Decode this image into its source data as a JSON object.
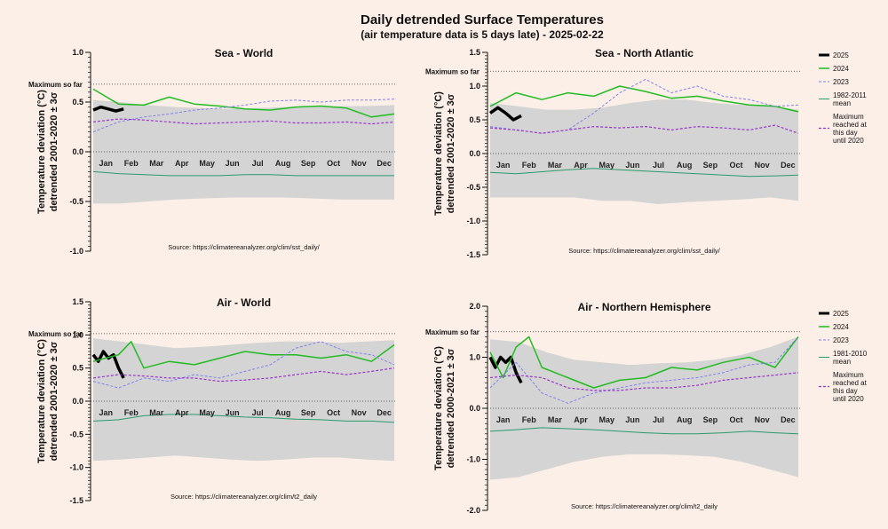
{
  "figure": {
    "title": "Daily detrended Surface Temperatures",
    "subtitle": "(air temperature data is 5 days late) - 2025-02-22",
    "months": [
      "Jan",
      "Feb",
      "Mar",
      "Apr",
      "May",
      "Jun",
      "Jul",
      "Aug",
      "Sep",
      "Oct",
      "Nov",
      "Dec"
    ],
    "max_label": "Maximum so far",
    "colors": {
      "y2025": "#000000",
      "y2024": "#22bb22",
      "y2023": "#8080ee",
      "mean": "#2a9a6a",
      "maxline": "#9933cc",
      "band": "#d4d4d4",
      "background": "#fcefe7"
    }
  },
  "chart_data": [
    {
      "type": "line",
      "title": "Sea  -  World",
      "ylabel": "Temperature deviation (°C)",
      "ylabel2": "detrended 2001-2020 ± 3σ",
      "source": "Source: https://climatereanalyzer.org/clim/sst_daily/",
      "ylim": [
        -1.0,
        1.0
      ],
      "yticks": [
        "1.0",
        "0.5",
        "0.0",
        "-0.5",
        "-1.0"
      ],
      "max_so_far": 0.68,
      "band_upper": [
        0.52,
        0.5,
        0.47,
        0.45,
        0.44,
        0.43,
        0.44,
        0.45,
        0.46,
        0.46,
        0.46,
        0.47
      ],
      "band_lower": [
        -0.52,
        -0.52,
        -0.5,
        -0.48,
        -0.47,
        -0.46,
        -0.46,
        -0.46,
        -0.47,
        -0.48,
        -0.48,
        -0.48
      ],
      "series": [
        {
          "name": "2025",
          "x": [
            0,
            0.3,
            0.6,
            0.9,
            1.2
          ],
          "values": [
            0.42,
            0.45,
            0.43,
            0.41,
            0.43
          ]
        },
        {
          "name": "2024",
          "x": [
            0,
            1,
            2,
            3,
            4,
            5,
            6,
            7,
            8,
            9,
            10,
            11,
            11.9
          ],
          "values": [
            0.63,
            0.48,
            0.47,
            0.55,
            0.48,
            0.46,
            0.43,
            0.42,
            0.45,
            0.46,
            0.44,
            0.35,
            0.38
          ]
        },
        {
          "name": "2023",
          "x": [
            0,
            1,
            2,
            3,
            4,
            5,
            6,
            7,
            8,
            9,
            10,
            11,
            11.9
          ],
          "values": [
            0.2,
            0.3,
            0.35,
            0.38,
            0.42,
            0.44,
            0.47,
            0.51,
            0.52,
            0.5,
            0.52,
            0.52,
            0.53
          ]
        },
        {
          "name": "1982-2011 mean",
          "x": [
            0,
            1,
            2,
            3,
            4,
            5,
            6,
            7,
            8,
            9,
            10,
            11,
            11.9
          ],
          "values": [
            -0.2,
            -0.22,
            -0.23,
            -0.24,
            -0.24,
            -0.24,
            -0.23,
            -0.23,
            -0.24,
            -0.24,
            -0.24,
            -0.24,
            -0.24
          ]
        },
        {
          "name": "Maximum",
          "x": [
            0,
            1,
            2,
            3,
            4,
            5,
            6,
            7,
            8,
            9,
            10,
            11,
            11.9
          ],
          "values": [
            0.3,
            0.33,
            0.32,
            0.3,
            0.28,
            0.29,
            0.3,
            0.31,
            0.29,
            0.29,
            0.3,
            0.28,
            0.3
          ]
        }
      ]
    },
    {
      "type": "line",
      "title": "Sea  -  North  Atlantic",
      "ylabel": "Temperature deviation (°C)",
      "ylabel2": "detrended 2001-2020 ± 3σ",
      "source": "Source: https://climatereanalyzer.org/clim/sst_daily/",
      "ylim": [
        -1.5,
        1.5
      ],
      "yticks": [
        "1.5",
        "1.0",
        "0.5",
        "0.0",
        "-0.5",
        "-1.0",
        "-1.5"
      ],
      "max_so_far": 1.22,
      "band_upper": [
        0.75,
        0.7,
        0.65,
        0.65,
        0.68,
        0.75,
        0.8,
        0.8,
        0.75,
        0.72,
        0.7,
        0.65
      ],
      "band_lower": [
        -0.65,
        -0.65,
        -0.65,
        -0.65,
        -0.7,
        -0.7,
        -0.75,
        -0.72,
        -0.7,
        -0.68,
        -0.65,
        -0.7
      ],
      "series": [
        {
          "name": "2025",
          "x": [
            0,
            0.3,
            0.6,
            0.9,
            1.2
          ],
          "values": [
            0.6,
            0.68,
            0.6,
            0.5,
            0.56
          ]
        },
        {
          "name": "2024",
          "x": [
            0,
            1,
            2,
            3,
            4,
            5,
            6,
            7,
            8,
            9,
            10,
            11,
            11.9
          ],
          "values": [
            0.7,
            0.9,
            0.8,
            0.9,
            0.85,
            1.0,
            0.92,
            0.82,
            0.85,
            0.78,
            0.72,
            0.7,
            0.62
          ]
        },
        {
          "name": "2023",
          "x": [
            0,
            1,
            2,
            3,
            4,
            5,
            6,
            7,
            8,
            9,
            10,
            11,
            11.9
          ],
          "values": [
            0.4,
            0.35,
            0.3,
            0.35,
            0.6,
            0.9,
            1.1,
            0.9,
            1.0,
            0.85,
            0.8,
            0.7,
            0.72
          ]
        },
        {
          "name": "1982-2011 mean",
          "x": [
            0,
            1,
            2,
            3,
            4,
            5,
            6,
            7,
            8,
            9,
            10,
            11,
            11.9
          ],
          "values": [
            -0.28,
            -0.3,
            -0.27,
            -0.24,
            -0.22,
            -0.24,
            -0.26,
            -0.28,
            -0.3,
            -0.32,
            -0.34,
            -0.33,
            -0.32
          ]
        },
        {
          "name": "Maximum",
          "x": [
            0,
            1,
            2,
            3,
            4,
            5,
            6,
            7,
            8,
            9,
            10,
            11,
            11.9
          ],
          "values": [
            0.38,
            0.35,
            0.3,
            0.35,
            0.4,
            0.38,
            0.4,
            0.35,
            0.4,
            0.38,
            0.35,
            0.42,
            0.3
          ]
        }
      ]
    },
    {
      "type": "line",
      "title": "Air -  World",
      "ylabel": "Temperature deviation (°C)",
      "ylabel2": "detrended 2001-2020 ± 3σ",
      "source": "Source: https://climatereanalyzer.org/clim/t2_daily",
      "ylim": [
        -1.5,
        1.5
      ],
      "yticks": [
        "1.5",
        "1.0",
        "0.5",
        "0.0",
        "-0.5",
        "-1.0",
        "-1.5"
      ],
      "max_so_far": 1.02,
      "band_upper": [
        0.95,
        0.9,
        0.85,
        0.8,
        0.82,
        0.85,
        0.88,
        0.9,
        0.9,
        0.88,
        0.9,
        0.92
      ],
      "band_lower": [
        -0.9,
        -0.88,
        -0.85,
        -0.82,
        -0.85,
        -0.88,
        -0.9,
        -0.88,
        -0.85,
        -0.85,
        -0.88,
        -0.9
      ],
      "series": [
        {
          "name": "2025",
          "x": [
            0,
            0.2,
            0.4,
            0.6,
            0.8,
            1.0,
            1.2
          ],
          "values": [
            0.7,
            0.6,
            0.75,
            0.65,
            0.7,
            0.5,
            0.35
          ]
        },
        {
          "name": "2024",
          "x": [
            0,
            1,
            1.5,
            2,
            3,
            4,
            5,
            6,
            7,
            8,
            9,
            10,
            11,
            11.9
          ],
          "values": [
            0.6,
            0.7,
            0.9,
            0.5,
            0.6,
            0.55,
            0.65,
            0.75,
            0.7,
            0.7,
            0.65,
            0.7,
            0.6,
            0.85
          ]
        },
        {
          "name": "2023",
          "x": [
            0,
            1,
            2,
            3,
            4,
            5,
            6,
            7,
            8,
            9,
            10,
            11,
            11.9
          ],
          "values": [
            0.3,
            0.2,
            0.35,
            0.3,
            0.4,
            0.35,
            0.45,
            0.55,
            0.8,
            0.9,
            0.75,
            0.7,
            0.55
          ]
        },
        {
          "name": "1981-2010 mean",
          "x": [
            0,
            1,
            2,
            3,
            4,
            5,
            6,
            7,
            8,
            9,
            10,
            11,
            11.9
          ],
          "values": [
            -0.3,
            -0.28,
            -0.22,
            -0.2,
            -0.2,
            -0.22,
            -0.24,
            -0.25,
            -0.27,
            -0.28,
            -0.3,
            -0.3,
            -0.32
          ]
        },
        {
          "name": "Maximum",
          "x": [
            0,
            1,
            2,
            3,
            4,
            5,
            6,
            7,
            8,
            9,
            10,
            11,
            11.9
          ],
          "values": [
            0.35,
            0.4,
            0.38,
            0.35,
            0.35,
            0.3,
            0.32,
            0.35,
            0.4,
            0.45,
            0.4,
            0.45,
            0.5
          ]
        }
      ]
    },
    {
      "type": "line",
      "title": "Air -  Northern Hemisphere",
      "ylabel": "Temperature deviation (°C)",
      "ylabel2": "detrended 2000-2021 ± 3σ",
      "source": "Source: https://climatereanalyzer.org/clim/t2_daily",
      "ylim": [
        -2.0,
        2.0
      ],
      "yticks": [
        "2.0",
        "1.0",
        "0.0",
        "-1.0",
        "-2.0"
      ],
      "max_so_far": 1.5,
      "band_upper": [
        1.35,
        1.3,
        1.1,
        0.95,
        0.9,
        0.85,
        0.88,
        0.9,
        0.95,
        1.05,
        1.2,
        1.4
      ],
      "band_lower": [
        -1.4,
        -1.35,
        -1.2,
        -1.05,
        -0.95,
        -0.9,
        -0.9,
        -0.92,
        -0.95,
        -1.05,
        -1.2,
        -1.35
      ],
      "series": [
        {
          "name": "2025",
          "x": [
            0,
            0.2,
            0.4,
            0.6,
            0.8,
            1.0,
            1.2
          ],
          "values": [
            1.0,
            0.8,
            1.0,
            0.9,
            1.0,
            0.7,
            0.5
          ]
        },
        {
          "name": "2024",
          "x": [
            0,
            0.5,
            1,
            1.5,
            2,
            3,
            4,
            5,
            6,
            7,
            8,
            9,
            10,
            11,
            11.9
          ],
          "values": [
            1.1,
            0.6,
            1.2,
            1.4,
            0.8,
            0.6,
            0.4,
            0.55,
            0.6,
            0.8,
            0.75,
            0.9,
            1.0,
            0.8,
            1.4
          ]
        },
        {
          "name": "2023",
          "x": [
            0,
            1,
            2,
            3,
            4,
            5,
            6,
            7,
            8,
            9,
            10,
            11,
            11.9
          ],
          "values": [
            0.4,
            0.9,
            0.3,
            0.1,
            0.3,
            0.4,
            0.5,
            0.55,
            0.6,
            0.7,
            0.85,
            0.9,
            1.4
          ]
        },
        {
          "name": "1981-2010 mean",
          "x": [
            0,
            1,
            2,
            3,
            4,
            5,
            6,
            7,
            8,
            9,
            10,
            11,
            11.9
          ],
          "values": [
            -0.45,
            -0.42,
            -0.38,
            -0.4,
            -0.42,
            -0.45,
            -0.48,
            -0.5,
            -0.5,
            -0.48,
            -0.45,
            -0.48,
            -0.5
          ]
        },
        {
          "name": "Maximum",
          "x": [
            0,
            1,
            2,
            3,
            4,
            5,
            6,
            7,
            8,
            9,
            10,
            11,
            11.9
          ],
          "values": [
            0.6,
            0.65,
            0.6,
            0.4,
            0.35,
            0.35,
            0.4,
            0.4,
            0.45,
            0.55,
            0.6,
            0.65,
            0.7
          ]
        }
      ]
    }
  ],
  "legends": [
    {
      "entries": [
        "2025",
        "2024",
        "2023",
        "1982-2011\nmean",
        "Maximum\nreached at\nthis day\nuntil 2020"
      ]
    },
    {
      "entries": [
        "2025",
        "2024",
        "2023",
        "1981-2010\nmean",
        "Maximum\nreached at\nthis day\nuntil 2020"
      ]
    }
  ]
}
